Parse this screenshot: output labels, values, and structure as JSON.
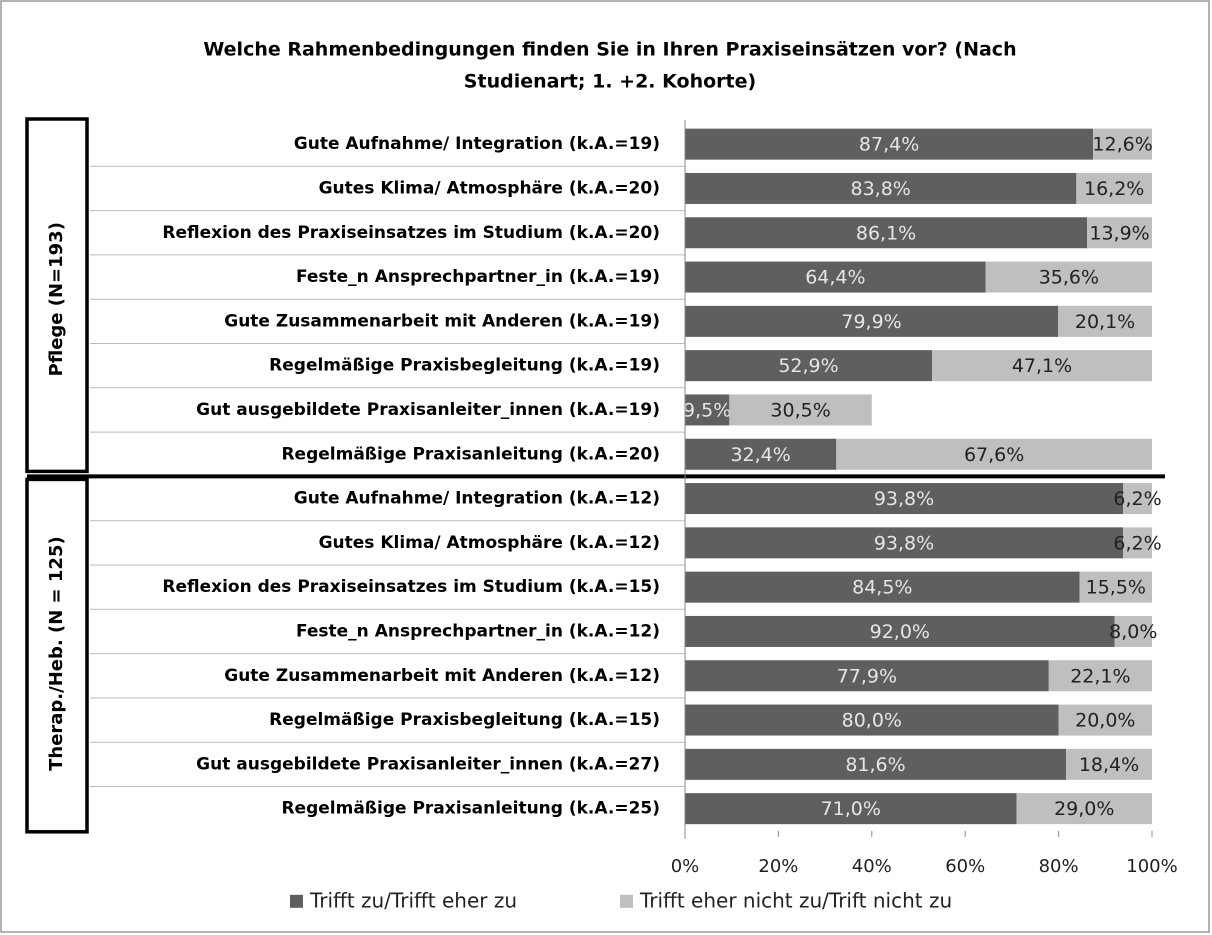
{
  "chart_data": {
    "type": "stacked_barh",
    "title": [
      "Welche Rahmenbedingungen finden Sie in Ihren Praxiseinsätzen vor? (Nach",
      "Studienart; 1. +2. Kohorte)"
    ],
    "groups": [
      {
        "name": "Pflege (N=193)",
        "categories": [
          "Gute Aufnahme/ Integration (k.A.=19)",
          "Gutes Klima/ Atmosphäre (k.A.=20)",
          "Reflexion des Praxiseinsatzes im Studium (k.A.=20)",
          "Feste_n Ansprechpartner_in (k.A.=19)",
          "Gute Zusammenarbeit mit Anderen (k.A.=19)",
          "Regelmäßige  Praxisbegleitung (k.A.=19)",
          "Gut ausgebildete Praxisanleiter_innen (k.A.=19)",
          "Regelmäßige Praxisanleitung (k.A.=20)"
        ]
      },
      {
        "name": "Therap./Heb. (N = 125)",
        "categories": [
          "Gute Aufnahme/ Integration (k.A.=12)",
          "Gutes Klima/ Atmosphäre (k.A.=12)",
          "Reflexion des Praxiseinsatzes im Studium (k.A.=15)",
          "Feste_n Ansprechpartner_in (k.A.=12)",
          "Gute Zusammenarbeit mit Anderen (k.A.=12)",
          "Regelmäßige  Praxisbegleitung (k.A.=15)",
          "Gut ausgebildete Praxisanleiter_innen (k.A.=27)",
          "Regelmäßige Praxisanleitung (k.A.=25)"
        ]
      }
    ],
    "series": [
      {
        "name": "Trifft zu/Trifft eher zu",
        "color": "#5f5f5f",
        "values": [
          87.4,
          83.8,
          86.1,
          64.4,
          79.9,
          52.9,
          9.5,
          32.4,
          93.8,
          93.8,
          84.5,
          92.0,
          77.9,
          80.0,
          81.6,
          71.0
        ],
        "value_labels": [
          "87,4%",
          "83,8%",
          "86,1%",
          "64,4%",
          "79,9%",
          "52,9%",
          "9,5%",
          "32,4%",
          "93,8%",
          "93,8%",
          "84,5%",
          "92,0%",
          "77,9%",
          "80,0%",
          "81,6%",
          "71,0%"
        ]
      },
      {
        "name": "Trifft eher nicht zu/Trift nicht zu",
        "color": "#bfbfbf",
        "values": [
          12.6,
          16.2,
          13.9,
          35.6,
          20.1,
          47.1,
          30.5,
          67.6,
          6.2,
          6.2,
          15.5,
          8.0,
          22.1,
          20.0,
          18.4,
          29.0
        ],
        "value_labels": [
          "12,6%",
          "16,2%",
          "13,9%",
          "35,6%",
          "20,1%",
          "47,1%",
          "30,5%",
          "67,6%",
          "6,2%",
          "6,2%",
          "15,5%",
          "8,0%",
          "22,1%",
          "20,0%",
          "18,4%",
          "29,0%"
        ]
      }
    ],
    "xlim": [
      0,
      100
    ],
    "xticks": [
      {
        "value": 0,
        "label": "0%"
      },
      {
        "value": 20,
        "label": "20%"
      },
      {
        "value": 40,
        "label": "40%"
      },
      {
        "value": 60,
        "label": "60%"
      },
      {
        "value": 80,
        "label": "80%"
      },
      {
        "value": 100,
        "label": "100%"
      }
    ],
    "legend": "bottom"
  }
}
